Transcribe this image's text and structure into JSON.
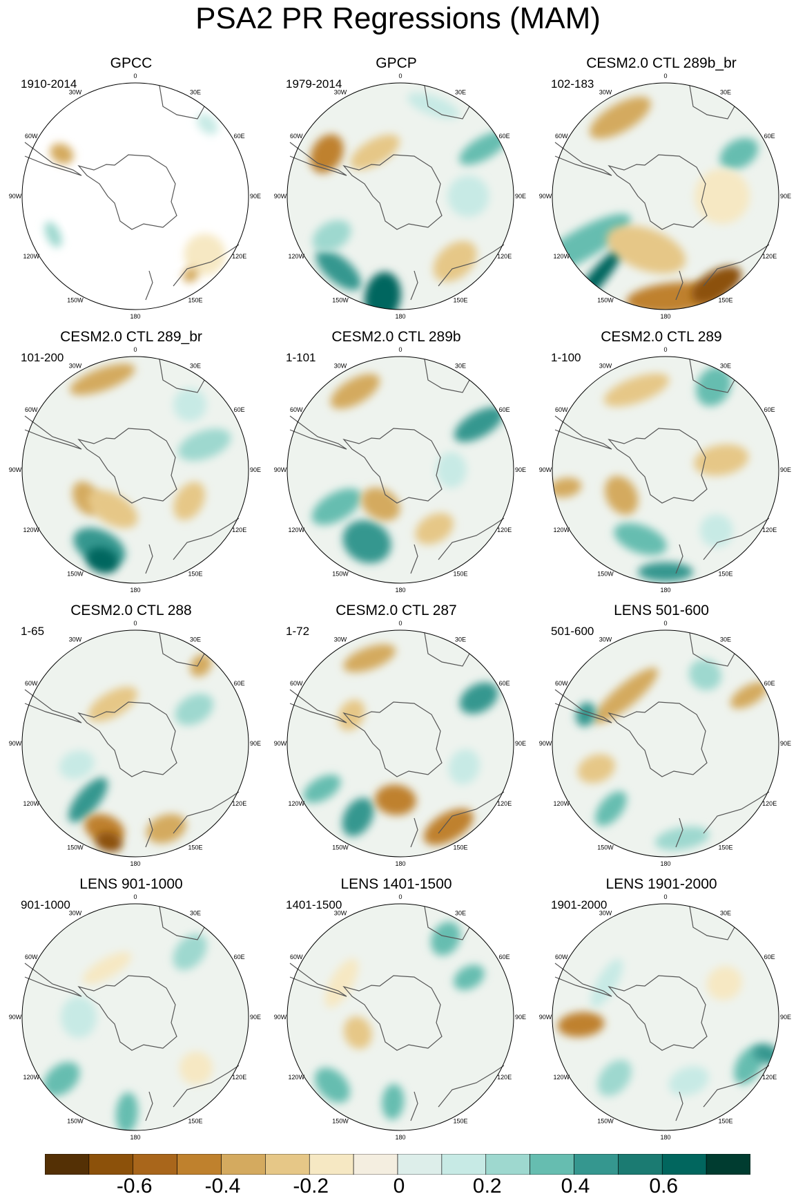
{
  "title": "PSA2 PR Regressions (MAM)",
  "colors": {
    "brown_dark": "#5c3208",
    "brown_light": "#e6c787",
    "cream": "#f2ead9",
    "teal_light": "#bfe6e0",
    "teal_dark": "#00473a",
    "coast": "#555555"
  },
  "longitude_labels": [
    "0",
    "30E",
    "60E",
    "90E",
    "120E",
    "150E",
    "180",
    "150W",
    "120W",
    "90W",
    "60W",
    "30W"
  ],
  "panels": [
    {
      "title": "GPCC",
      "period": "1910-2014",
      "pattern": "gpcc"
    },
    {
      "title": "GPCP",
      "period": "1979-2014",
      "pattern": "gpcp"
    },
    {
      "title": "CESM2.0 CTL 289b_br",
      "period": "102-183",
      "pattern": "p3"
    },
    {
      "title": "CESM2.0 CTL 289_br",
      "period": "101-200",
      "pattern": "p4"
    },
    {
      "title": "CESM2.0 CTL 289b",
      "period": "1-101",
      "pattern": "p5"
    },
    {
      "title": "CESM2.0 CTL 289",
      "period": "1-100",
      "pattern": "p6"
    },
    {
      "title": "CESM2.0 CTL 288",
      "period": "1-65",
      "pattern": "p7"
    },
    {
      "title": "CESM2.0 CTL 287",
      "period": "1-72",
      "pattern": "p8"
    },
    {
      "title": "LENS 501-600",
      "period": "501-600",
      "pattern": "p9"
    },
    {
      "title": "LENS 901-1000",
      "period": "901-1000",
      "pattern": "p10"
    },
    {
      "title": "LENS 1401-1500",
      "period": "1401-1500",
      "pattern": "p11"
    },
    {
      "title": "LENS 1901-2000",
      "period": "1901-2000",
      "pattern": "p12"
    }
  ],
  "colorbar": {
    "colors": [
      "#543005",
      "#8c510a",
      "#a9661b",
      "#bf812d",
      "#d4aa5f",
      "#e6c787",
      "#f6e8c3",
      "#f4eee0",
      "#ddeeea",
      "#c7eae5",
      "#9ed8cf",
      "#66bdb0",
      "#35978f",
      "#1b7b72",
      "#01665e",
      "#003c30"
    ],
    "tick_labels": [
      "-0.6",
      "-0.4",
      "-0.2",
      "0",
      "0.2",
      "0.4",
      "0.6"
    ]
  }
}
